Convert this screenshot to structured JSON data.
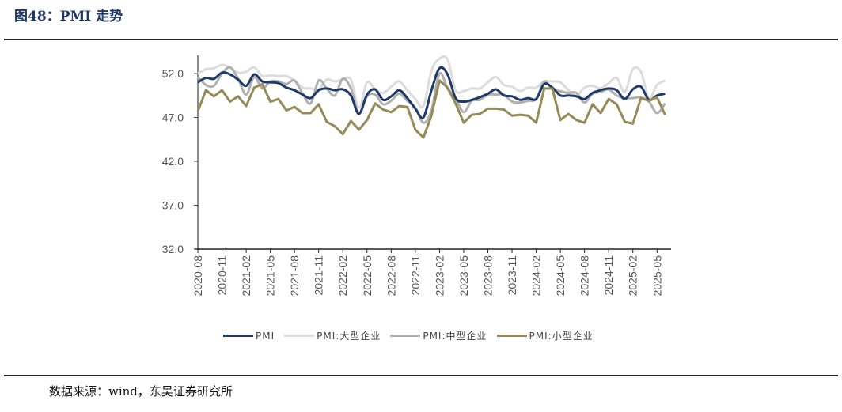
{
  "header": {
    "title": "图48：PMI 走势"
  },
  "footer": {
    "source": "数据来源：wind，东吴证券研究所"
  },
  "legend": [
    {
      "label": "PMI",
      "color": "#1f3a68"
    },
    {
      "label": "PMI:大型企业",
      "color": "#dcdcdc"
    },
    {
      "label": "PMI:中型企业",
      "color": "#b0b0b0"
    },
    {
      "label": "PMI:小型企业",
      "color": "#958a58"
    }
  ],
  "chart_data": {
    "type": "line",
    "title": "PMI 走势",
    "xlabel": "",
    "ylabel": "",
    "ylim": [
      32.0,
      54.0
    ],
    "yticks": [
      "52.0",
      "47.0",
      "42.0",
      "37.0",
      "32.0"
    ],
    "xtick_labels": [
      "2020-08",
      "2020-11",
      "2021-02",
      "2021-05",
      "2021-08",
      "2021-11",
      "2022-02",
      "2022-05",
      "2022-08",
      "2022-11",
      "2023-02",
      "2023-05",
      "2023-08",
      "2023-11",
      "2024-02",
      "2024-05",
      "2024-08",
      "2024-11",
      "2025-02",
      "2025-05"
    ],
    "x": [
      "2020-08",
      "2020-09",
      "2020-10",
      "2020-11",
      "2020-12",
      "2021-01",
      "2021-02",
      "2021-03",
      "2021-04",
      "2021-05",
      "2021-06",
      "2021-07",
      "2021-08",
      "2021-09",
      "2021-10",
      "2021-11",
      "2021-12",
      "2022-01",
      "2022-02",
      "2022-03",
      "2022-04",
      "2022-05",
      "2022-06",
      "2022-07",
      "2022-08",
      "2022-09",
      "2022-10",
      "2022-11",
      "2022-12",
      "2023-01",
      "2023-02",
      "2023-03",
      "2023-04",
      "2023-05",
      "2023-06",
      "2023-07",
      "2023-08",
      "2023-09",
      "2023-10",
      "2023-11",
      "2023-12",
      "2024-01",
      "2024-02",
      "2024-03",
      "2024-04",
      "2024-05",
      "2024-06",
      "2024-07",
      "2024-08",
      "2024-09",
      "2024-10",
      "2024-11",
      "2024-12",
      "2025-01",
      "2025-02",
      "2025-03",
      "2025-04",
      "2025-05",
      "2025-06"
    ],
    "series": [
      {
        "name": "PMI",
        "values": [
          51.0,
          51.5,
          51.4,
          52.1,
          51.9,
          51.3,
          50.6,
          51.9,
          51.1,
          51.0,
          50.9,
          50.4,
          50.1,
          49.6,
          49.2,
          50.1,
          50.3,
          50.1,
          50.2,
          49.5,
          47.4,
          49.6,
          50.2,
          49.0,
          49.4,
          50.1,
          49.2,
          48.0,
          47.0,
          50.1,
          52.6,
          51.9,
          49.2,
          48.8,
          49.0,
          49.3,
          49.7,
          50.2,
          49.5,
          49.4,
          49.0,
          49.2,
          49.1,
          50.8,
          50.4,
          49.5,
          49.5,
          49.4,
          49.1,
          49.8,
          50.1,
          50.3,
          50.1,
          49.1,
          50.2,
          50.5,
          49.0,
          49.5,
          49.7
        ]
      },
      {
        "name": "PMI:大型企业",
        "values": [
          52.0,
          52.5,
          52.6,
          53.0,
          52.7,
          52.1,
          52.2,
          52.7,
          51.7,
          51.8,
          51.7,
          51.7,
          51.2,
          50.4,
          50.3,
          50.2,
          51.3,
          51.1,
          51.3,
          51.3,
          48.1,
          51.0,
          50.2,
          49.8,
          50.5,
          51.1,
          50.1,
          49.1,
          48.3,
          52.3,
          53.7,
          53.6,
          50.1,
          50.0,
          50.3,
          50.3,
          51.0,
          51.6,
          50.7,
          50.5,
          50.0,
          50.4,
          50.4,
          51.1,
          51.1,
          51.0,
          50.1,
          49.5,
          50.4,
          50.6,
          50.3,
          50.9,
          51.5,
          49.9,
          52.5,
          52.2,
          49.2,
          50.7,
          51.2
        ]
      },
      {
        "name": "PMI:中型企业",
        "values": [
          51.6,
          50.7,
          50.6,
          52.0,
          52.7,
          51.4,
          49.6,
          51.6,
          50.3,
          51.1,
          51.1,
          50.8,
          51.2,
          49.7,
          48.6,
          51.2,
          50.3,
          49.5,
          51.4,
          50.3,
          47.5,
          49.4,
          49.6,
          48.5,
          48.9,
          49.7,
          48.9,
          48.1,
          46.4,
          47.8,
          52.0,
          50.3,
          49.2,
          47.6,
          48.9,
          49.0,
          49.6,
          49.6,
          49.6,
          48.8,
          48.7,
          48.9,
          49.1,
          51.1,
          50.2,
          50.0,
          49.8,
          49.8,
          48.7,
          49.7,
          49.9,
          50.2,
          49.5,
          49.2,
          49.2,
          49.3,
          48.8,
          47.5,
          48.6
        ]
      },
      {
        "name": "PMI:小型企业",
        "values": [
          47.7,
          50.1,
          49.4,
          50.1,
          48.8,
          49.4,
          48.3,
          50.4,
          50.8,
          48.8,
          49.1,
          47.8,
          48.2,
          47.5,
          47.5,
          48.5,
          46.5,
          46.0,
          45.1,
          46.6,
          45.6,
          46.7,
          48.6,
          47.9,
          47.6,
          48.3,
          48.2,
          45.6,
          44.7,
          47.2,
          51.2,
          50.4,
          48.6,
          46.4,
          47.3,
          47.4,
          48.0,
          48.0,
          47.9,
          47.2,
          47.3,
          47.2,
          46.4,
          50.3,
          50.3,
          46.7,
          47.4,
          46.7,
          46.4,
          48.5,
          47.5,
          49.1,
          48.5,
          46.5,
          46.3,
          49.2,
          48.9,
          49.3,
          47.3
        ]
      }
    ]
  }
}
